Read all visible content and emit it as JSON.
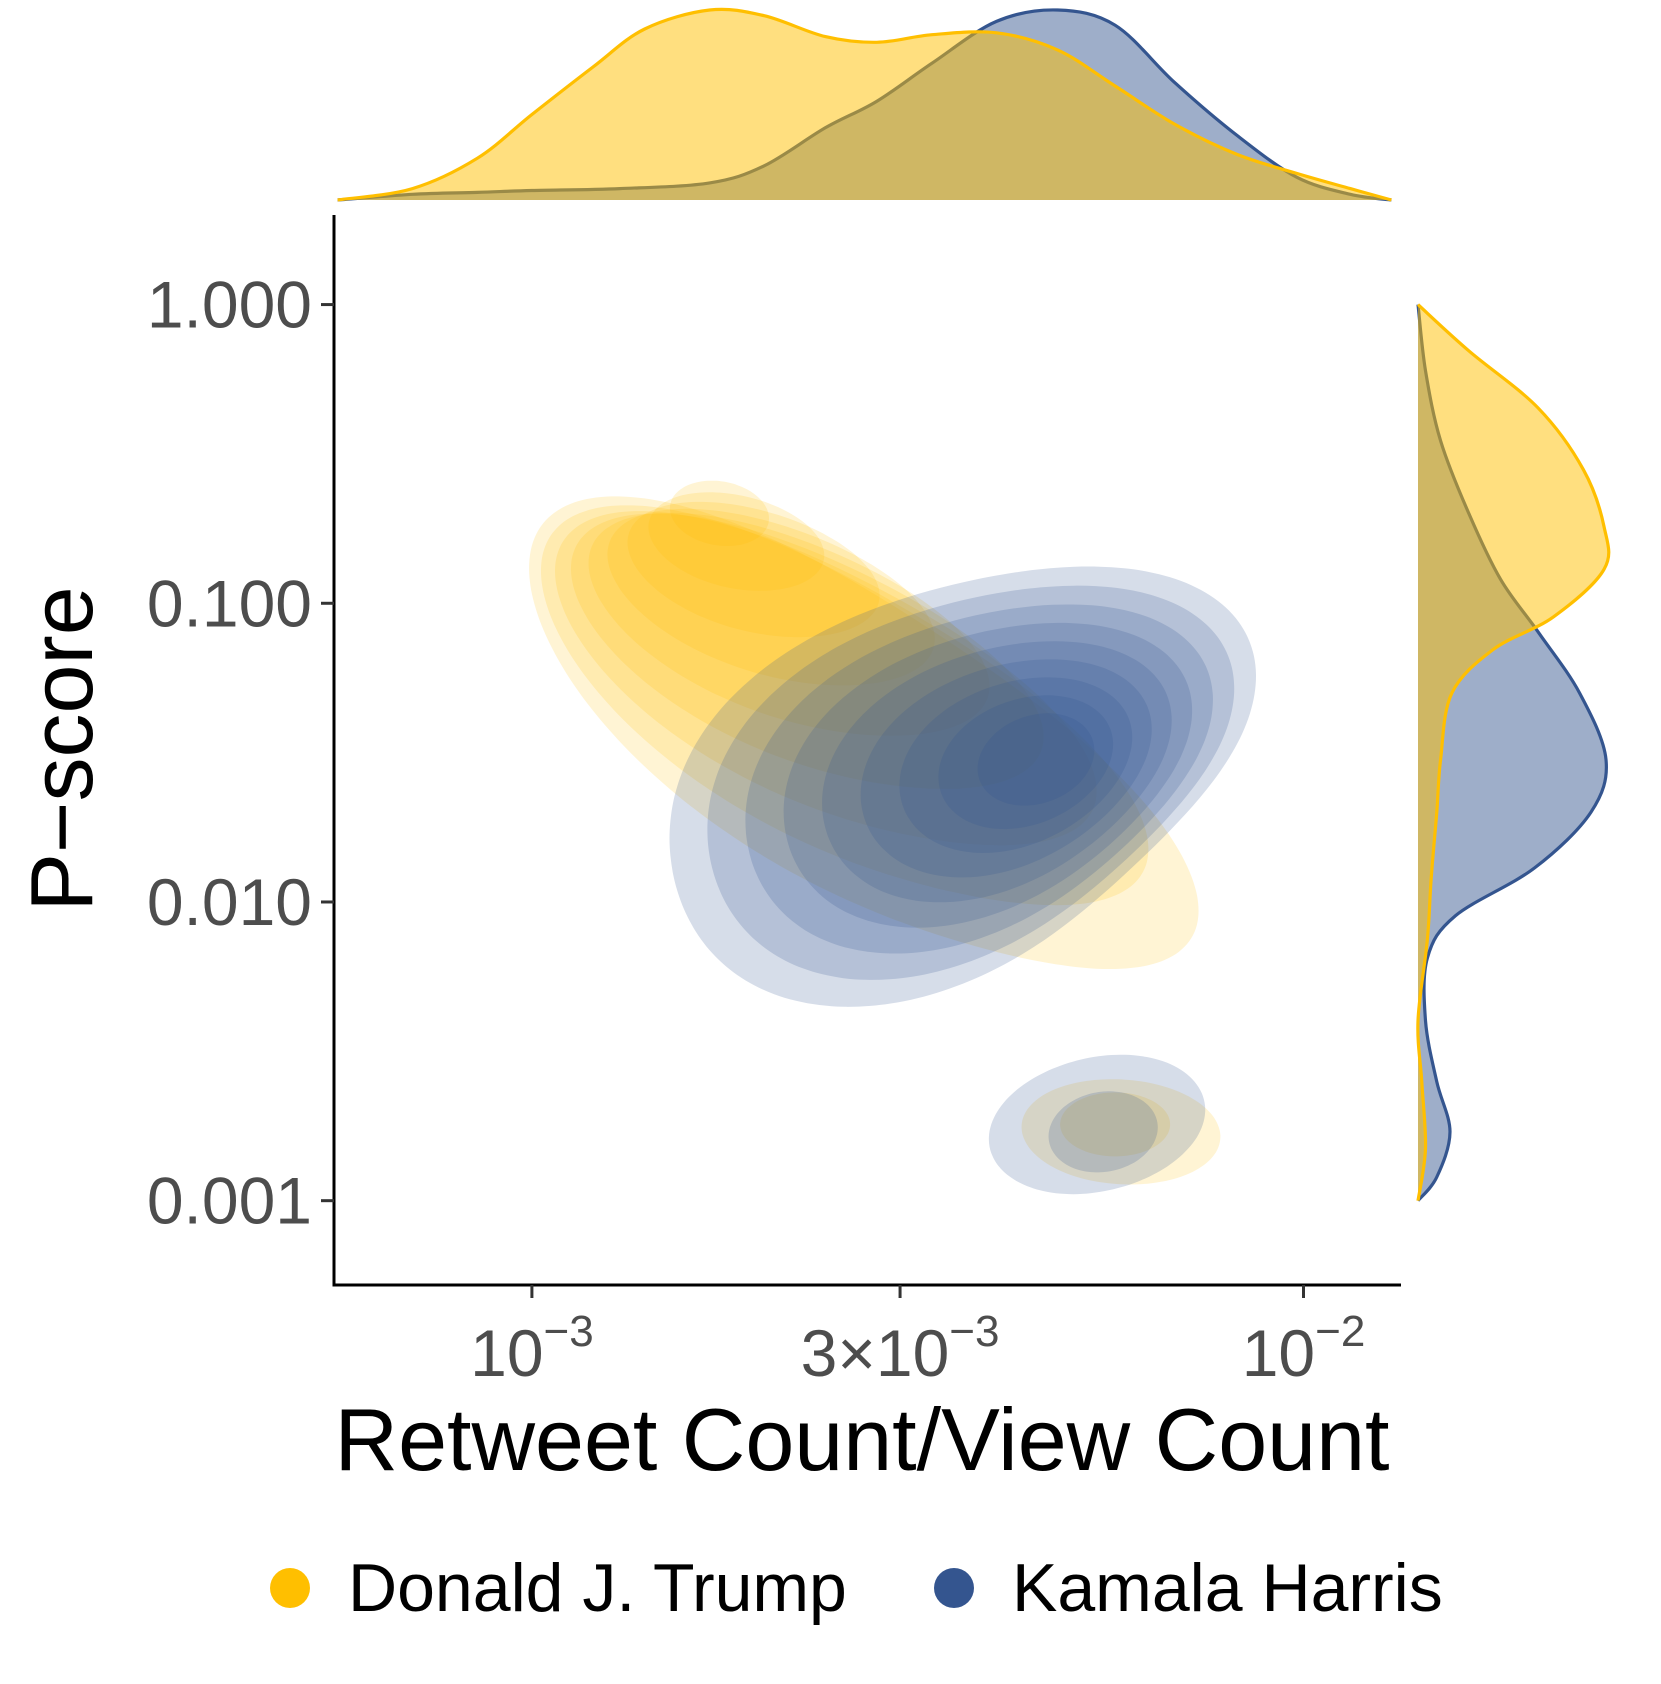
{
  "chart_data": {
    "type": "density-contour",
    "xlabel": "Retweet Count/View Count",
    "ylabel": "P−score",
    "x_scale": "log10",
    "y_scale": "log10",
    "xlim": [
      0.000554,
      0.0131
    ],
    "ylim": [
      0.00075,
      1.41
    ],
    "x_ticks": [
      {
        "value": 0.001,
        "label": "10",
        "exp": "−3"
      },
      {
        "value": 0.003,
        "label": "3×10",
        "exp": "−3"
      },
      {
        "value": 0.01,
        "label": "10",
        "exp": "−2"
      }
    ],
    "y_ticks": [
      {
        "value": 1,
        "label": "1.000"
      },
      {
        "value": 0.1,
        "label": "0.100"
      },
      {
        "value": 0.01,
        "label": "0.010"
      },
      {
        "value": 0.001,
        "label": "0.001"
      }
    ],
    "grid": false,
    "legend_position": "bottom",
    "series": [
      {
        "name": "Donald J. Trump",
        "color": "#FFBF00",
        "density_peak": {
          "x": 0.00175,
          "y": 0.2
        },
        "secondary_peak": {
          "x": 0.0055,
          "y": 0.0018
        },
        "x_marginal": [
          [
            0.00056,
            0.0
          ],
          [
            0.0007,
            0.06
          ],
          [
            0.00085,
            0.22
          ],
          [
            0.001,
            0.45
          ],
          [
            0.0012,
            0.7
          ],
          [
            0.0014,
            0.9
          ],
          [
            0.0017,
            1.0
          ],
          [
            0.002,
            0.97
          ],
          [
            0.0024,
            0.86
          ],
          [
            0.0028,
            0.83
          ],
          [
            0.0033,
            0.87
          ],
          [
            0.004,
            0.88
          ],
          [
            0.0048,
            0.79
          ],
          [
            0.0057,
            0.6
          ],
          [
            0.0068,
            0.4
          ],
          [
            0.0082,
            0.24
          ],
          [
            0.0098,
            0.14
          ],
          [
            0.0115,
            0.06
          ],
          [
            0.013,
            0.0
          ]
        ],
        "y_marginal": [
          [
            1.0,
            0.0
          ],
          [
            0.7,
            0.27
          ],
          [
            0.45,
            0.64
          ],
          [
            0.28,
            0.88
          ],
          [
            0.18,
            0.99
          ],
          [
            0.13,
            0.99
          ],
          [
            0.09,
            0.72
          ],
          [
            0.07,
            0.4
          ],
          [
            0.05,
            0.18
          ],
          [
            0.03,
            0.12
          ],
          [
            0.02,
            0.1
          ],
          [
            0.012,
            0.07
          ],
          [
            0.0075,
            0.05
          ],
          [
            0.004,
            0.0
          ],
          [
            0.0025,
            0.02
          ],
          [
            0.0015,
            0.04
          ],
          [
            0.001,
            0.0
          ]
        ]
      },
      {
        "name": "Kamala Harris",
        "color": "#34558F",
        "density_peak": {
          "x": 0.0045,
          "y": 0.03
        },
        "secondary_peak": {
          "x": 0.0055,
          "y": 0.0017
        },
        "x_marginal": [
          [
            0.00056,
            0.0
          ],
          [
            0.0007,
            0.03
          ],
          [
            0.00085,
            0.04
          ],
          [
            0.001,
            0.05
          ],
          [
            0.0013,
            0.06
          ],
          [
            0.0017,
            0.09
          ],
          [
            0.002,
            0.18
          ],
          [
            0.0024,
            0.38
          ],
          [
            0.0028,
            0.52
          ],
          [
            0.0033,
            0.72
          ],
          [
            0.004,
            0.94
          ],
          [
            0.0048,
            1.0
          ],
          [
            0.0057,
            0.92
          ],
          [
            0.0068,
            0.62
          ],
          [
            0.0082,
            0.34
          ],
          [
            0.0098,
            0.12
          ],
          [
            0.0115,
            0.03
          ],
          [
            0.013,
            0.0
          ]
        ],
        "y_marginal": [
          [
            1.0,
            0.0
          ],
          [
            0.6,
            0.04
          ],
          [
            0.35,
            0.12
          ],
          [
            0.2,
            0.27
          ],
          [
            0.12,
            0.44
          ],
          [
            0.08,
            0.64
          ],
          [
            0.05,
            0.86
          ],
          [
            0.03,
            1.0
          ],
          [
            0.02,
            0.92
          ],
          [
            0.013,
            0.62
          ],
          [
            0.009,
            0.2
          ],
          [
            0.0065,
            0.05
          ],
          [
            0.004,
            0.04
          ],
          [
            0.0025,
            0.1
          ],
          [
            0.0017,
            0.17
          ],
          [
            0.0012,
            0.1
          ],
          [
            0.001,
            0.0
          ]
        ]
      }
    ]
  }
}
